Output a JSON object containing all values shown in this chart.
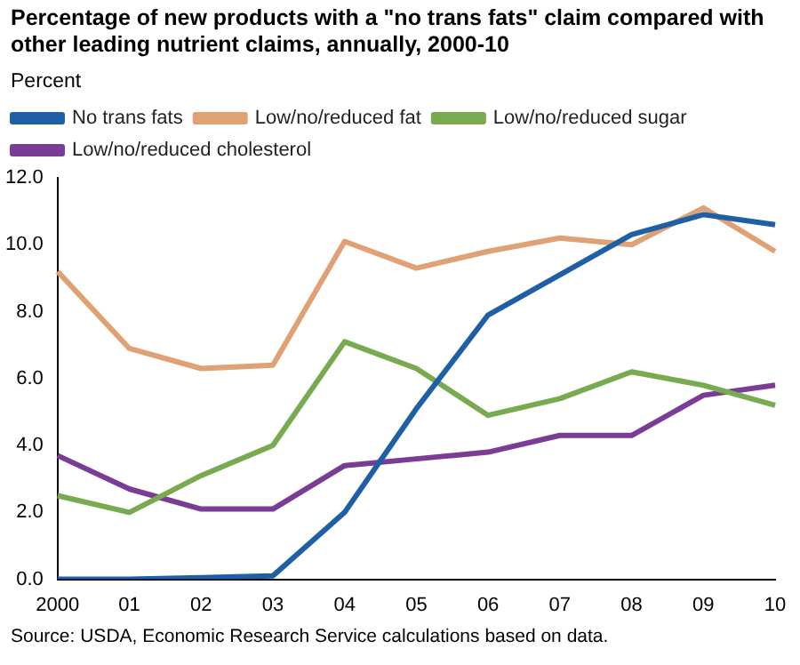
{
  "chart_data": {
    "type": "line",
    "title": "Percentage of new products with a \"no trans fats\" claim compared with other leading nutrient claims, annually, 2000-10",
    "ylabel": "Percent",
    "categories": [
      "2000",
      "01",
      "02",
      "03",
      "04",
      "05",
      "06",
      "07",
      "08",
      "09",
      "10"
    ],
    "series": [
      {
        "name": "No trans fats",
        "color": "#1f5fa6",
        "values": [
          0,
          0,
          0.05,
          0.1,
          2.0,
          5.1,
          7.9,
          9.1,
          10.3,
          10.9,
          10.6
        ]
      },
      {
        "name": "Low/no/reduced fat",
        "color": "#e0a174",
        "values": [
          9.2,
          6.9,
          6.3,
          6.4,
          10.1,
          9.3,
          9.8,
          10.2,
          10.0,
          11.1,
          9.8
        ]
      },
      {
        "name": "Low/no/reduced sugar",
        "color": "#78aa50",
        "values": [
          2.5,
          2.0,
          3.1,
          4.0,
          7.1,
          6.3,
          4.9,
          5.4,
          6.2,
          5.8,
          5.2
        ]
      },
      {
        "name": "Low/no/reduced cholesterol",
        "color": "#7b3c96",
        "values": [
          3.7,
          2.7,
          2.1,
          2.1,
          3.4,
          3.6,
          3.8,
          4.3,
          4.3,
          5.5,
          5.8
        ]
      }
    ],
    "ylim": [
      0,
      12
    ],
    "yticks": [
      {
        "value": 0,
        "label": "0.0"
      },
      {
        "value": 2,
        "label": "2.0"
      },
      {
        "value": 4,
        "label": "4.0"
      },
      {
        "value": 6,
        "label": "6.0"
      },
      {
        "value": 8,
        "label": "8.0"
      },
      {
        "value": 10,
        "label": "10.0"
      },
      {
        "value": 12,
        "label": "12.0"
      }
    ],
    "grid": false,
    "legend": "top",
    "marker": "none",
    "line_style": "solid",
    "annotations": [
      "Source: USDA, Economic Research Service calculations based on data."
    ]
  }
}
